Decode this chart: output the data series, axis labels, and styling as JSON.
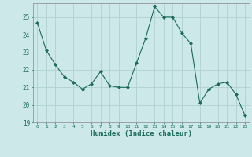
{
  "x": [
    0,
    1,
    2,
    3,
    4,
    5,
    6,
    7,
    8,
    9,
    10,
    11,
    12,
    13,
    14,
    15,
    16,
    17,
    18,
    19,
    20,
    21,
    22,
    23
  ],
  "y": [
    24.7,
    23.1,
    22.3,
    21.6,
    21.3,
    20.9,
    21.2,
    21.9,
    21.1,
    21.0,
    21.0,
    22.4,
    23.8,
    25.6,
    25.0,
    25.0,
    24.1,
    23.5,
    20.1,
    20.9,
    21.2,
    21.3,
    20.6,
    19.4
  ],
  "line_color": "#1a6b5a",
  "marker": "D",
  "marker_size": 2.0,
  "bg_color": "#cce8e8",
  "grid_color": "#b0d0d0",
  "xlabel": "Humidex (Indice chaleur)",
  "ylim": [
    19,
    25.8
  ],
  "yticks": [
    19,
    20,
    21,
    22,
    23,
    24,
    25
  ],
  "xticks": [
    0,
    1,
    2,
    3,
    4,
    5,
    6,
    7,
    8,
    9,
    10,
    11,
    12,
    13,
    14,
    15,
    16,
    17,
    18,
    19,
    20,
    21,
    22,
    23
  ],
  "tick_color": "#1a6b5a",
  "label_color": "#1a6b5a",
  "spine_color": "#888888"
}
